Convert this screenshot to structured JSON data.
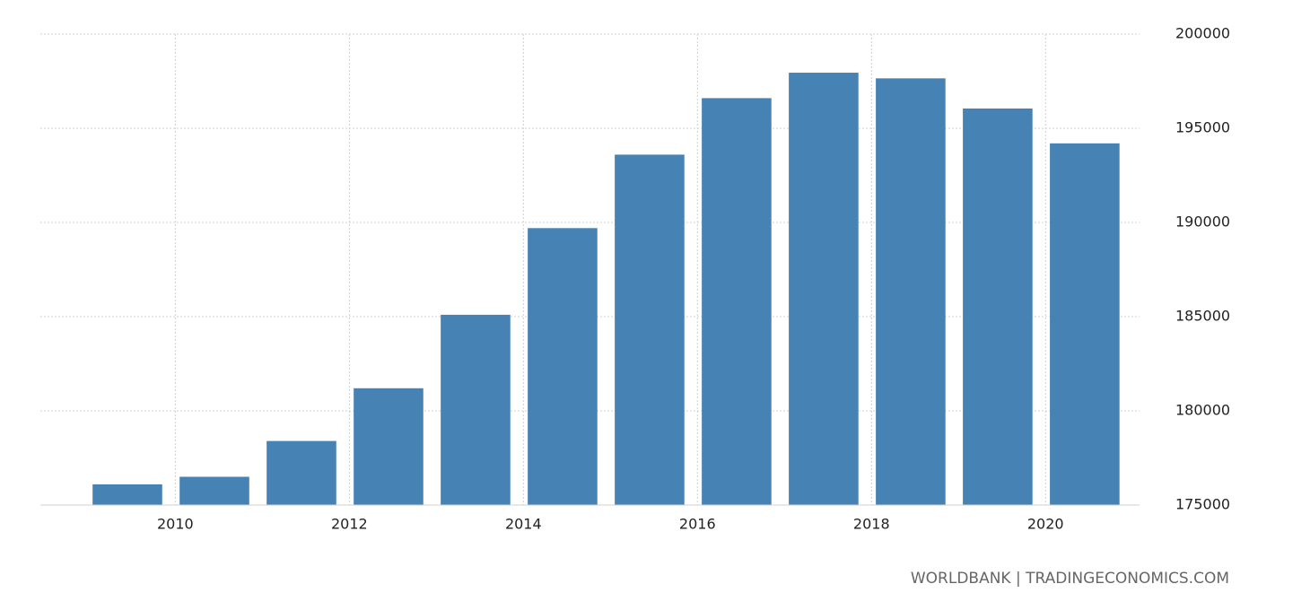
{
  "chart_data": {
    "type": "bar",
    "x": [
      2009,
      2010,
      2011,
      2012,
      2013,
      2014,
      2015,
      2016,
      2017,
      2018,
      2019,
      2020
    ],
    "values": [
      176100,
      176500,
      178400,
      181200,
      185100,
      189700,
      193600,
      196600,
      197950,
      197650,
      196050,
      194200
    ],
    "color": "#4682b4",
    "xlim": [
      2008.45,
      2021.08
    ],
    "xticks": [
      2010,
      2012,
      2014,
      2016,
      2018,
      2020
    ],
    "ylim": [
      175000,
      200000
    ],
    "yticks": [
      175000,
      180000,
      185000,
      190000,
      195000,
      200000
    ],
    "grid": true,
    "source": "WORLDBANK | TRADINGECONOMICS.COM"
  }
}
